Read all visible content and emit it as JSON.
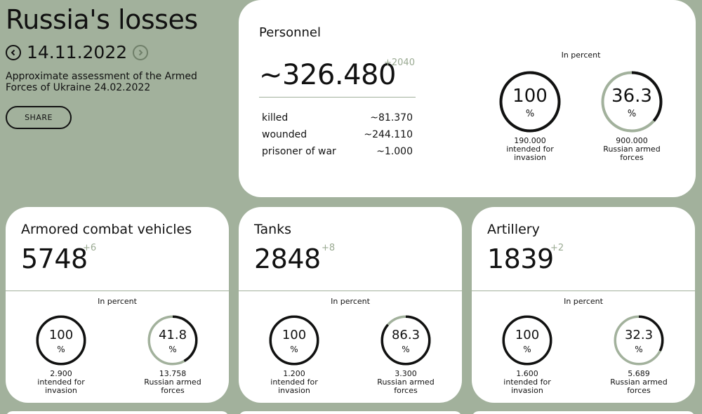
{
  "header": {
    "title": "Russia's losses",
    "date": "14.11.2022",
    "subtitle": "Approximate assessment of the Armed Forces of Ukraine 24.02.2022",
    "share_label": "SHARE"
  },
  "colors": {
    "background": "#a2b19c",
    "card": "#ffffff",
    "accent": "#9aaa92",
    "text": "#111111"
  },
  "personnel": {
    "title": "Personnel",
    "value": "~326.480",
    "delta": "+2040",
    "breakdown": [
      {
        "label": "killed",
        "value": "~81.370"
      },
      {
        "label": "wounded",
        "value": "~244.110"
      },
      {
        "label": "prisoner of war",
        "value": "~1.000"
      }
    ],
    "in_percent_label": "In percent",
    "circles": [
      {
        "value": "100",
        "unit": "%",
        "fraction": 1.0,
        "cap1": "190.000",
        "cap2": "intended for",
        "cap3": "invasion"
      },
      {
        "value": "36.3",
        "unit": "%",
        "fraction": 0.363,
        "cap1": "900.000",
        "cap2": "Russian armed",
        "cap3": "forces"
      }
    ]
  },
  "cards": [
    {
      "title": "Armored combat vehicles",
      "value": "5748",
      "delta": "+6",
      "in_percent_label": "In percent",
      "circles": [
        {
          "value": "100",
          "unit": "%",
          "fraction": 1.0,
          "cap1": "2.900",
          "cap2": "intended for",
          "cap3": "invasion"
        },
        {
          "value": "41.8",
          "unit": "%",
          "fraction": 0.418,
          "cap1": "13.758",
          "cap2": "Russian armed",
          "cap3": "forces"
        }
      ]
    },
    {
      "title": "Tanks",
      "value": "2848",
      "delta": "+8",
      "in_percent_label": "In percent",
      "circles": [
        {
          "value": "100",
          "unit": "%",
          "fraction": 1.0,
          "cap1": "1.200",
          "cap2": "intended for",
          "cap3": "invasion"
        },
        {
          "value": "86.3",
          "unit": "%",
          "fraction": 0.863,
          "cap1": "3.300",
          "cap2": "Russian armed",
          "cap3": "forces"
        }
      ]
    },
    {
      "title": "Artillery",
      "value": "1839",
      "delta": "+2",
      "in_percent_label": "In percent",
      "circles": [
        {
          "value": "100",
          "unit": "%",
          "fraction": 1.0,
          "cap1": "1.600",
          "cap2": "intended for",
          "cap3": "invasion"
        },
        {
          "value": "32.3",
          "unit": "%",
          "fraction": 0.323,
          "cap1": "5.689",
          "cap2": "Russian armed",
          "cap3": "forces"
        }
      ]
    }
  ]
}
